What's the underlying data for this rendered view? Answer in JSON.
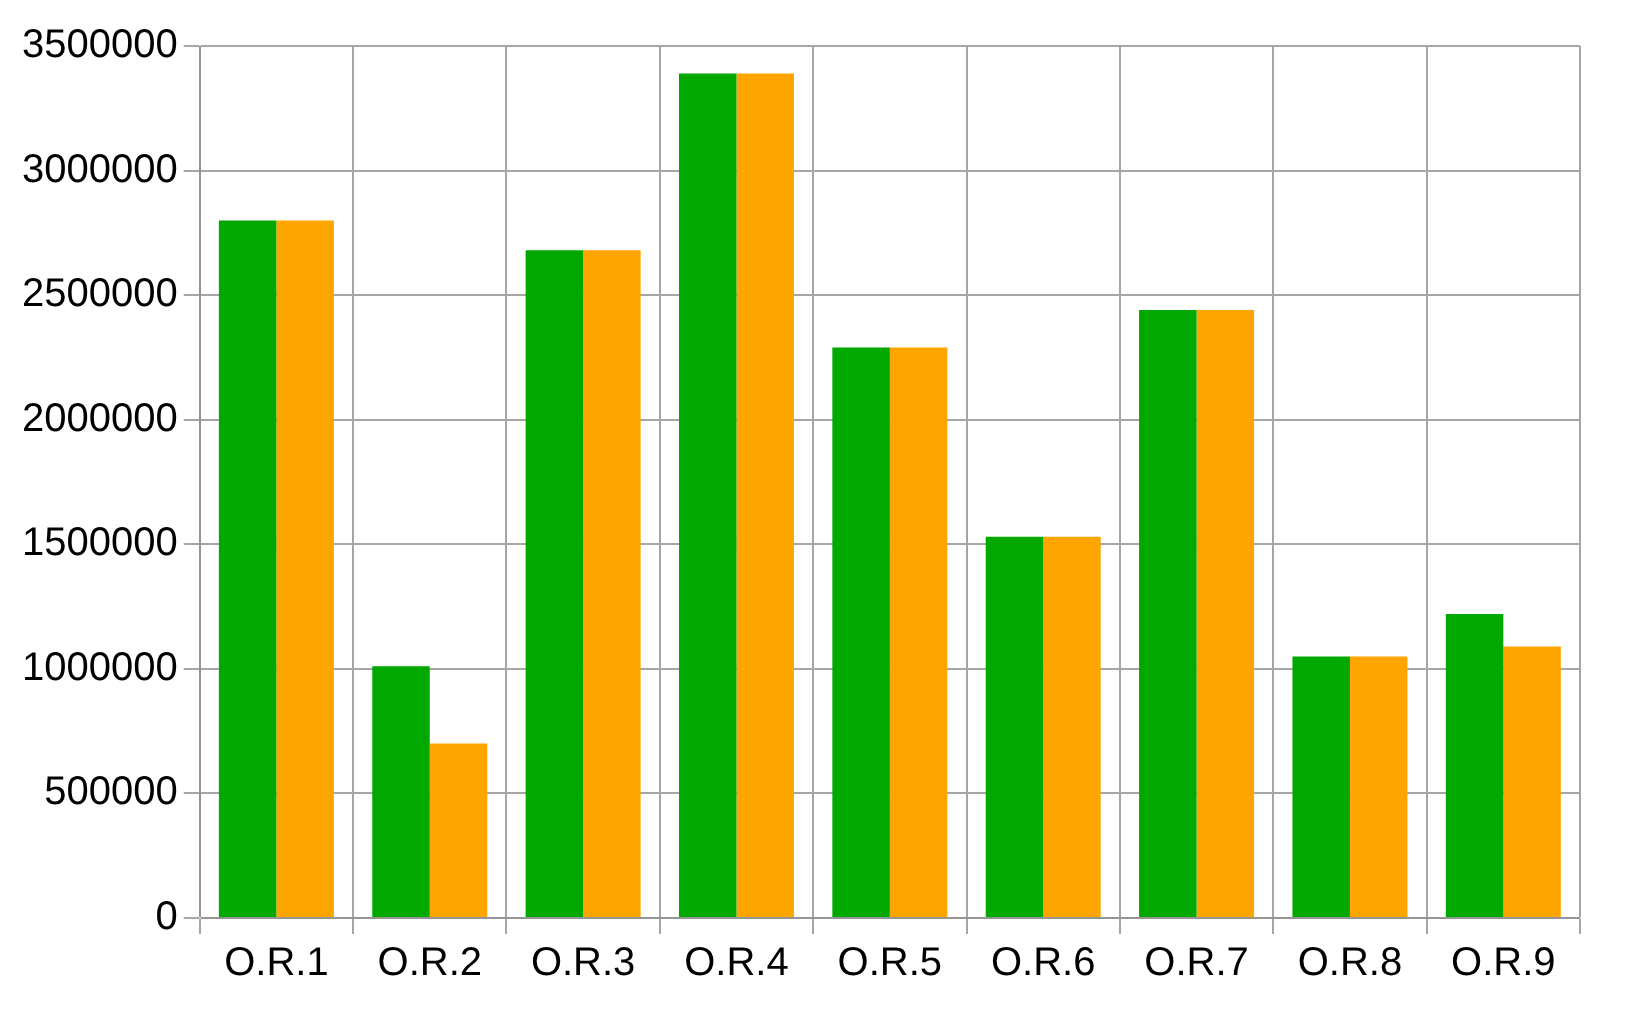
{
  "chart_data": {
    "type": "bar",
    "categories": [
      "O.R.1",
      "O.R.2",
      "O.R.3",
      "O.R.4",
      "O.R.5",
      "O.R.6",
      "O.R.7",
      "O.R.8",
      "O.R.9"
    ],
    "series": [
      {
        "color": "#00a800",
        "values": [
          2800000,
          1010000,
          2680000,
          3390000,
          2290000,
          1530000,
          2440000,
          1050000,
          1220000
        ]
      },
      {
        "color": "#ffa500",
        "values": [
          2800000,
          700000,
          2680000,
          3390000,
          2290000,
          1530000,
          2440000,
          1050000,
          1090000
        ]
      }
    ],
    "ylim": [
      0,
      3500000
    ],
    "yticks": [
      0,
      500000,
      1000000,
      1500000,
      2000000,
      2500000,
      3000000,
      3500000
    ],
    "grid": true,
    "legend": false
  }
}
